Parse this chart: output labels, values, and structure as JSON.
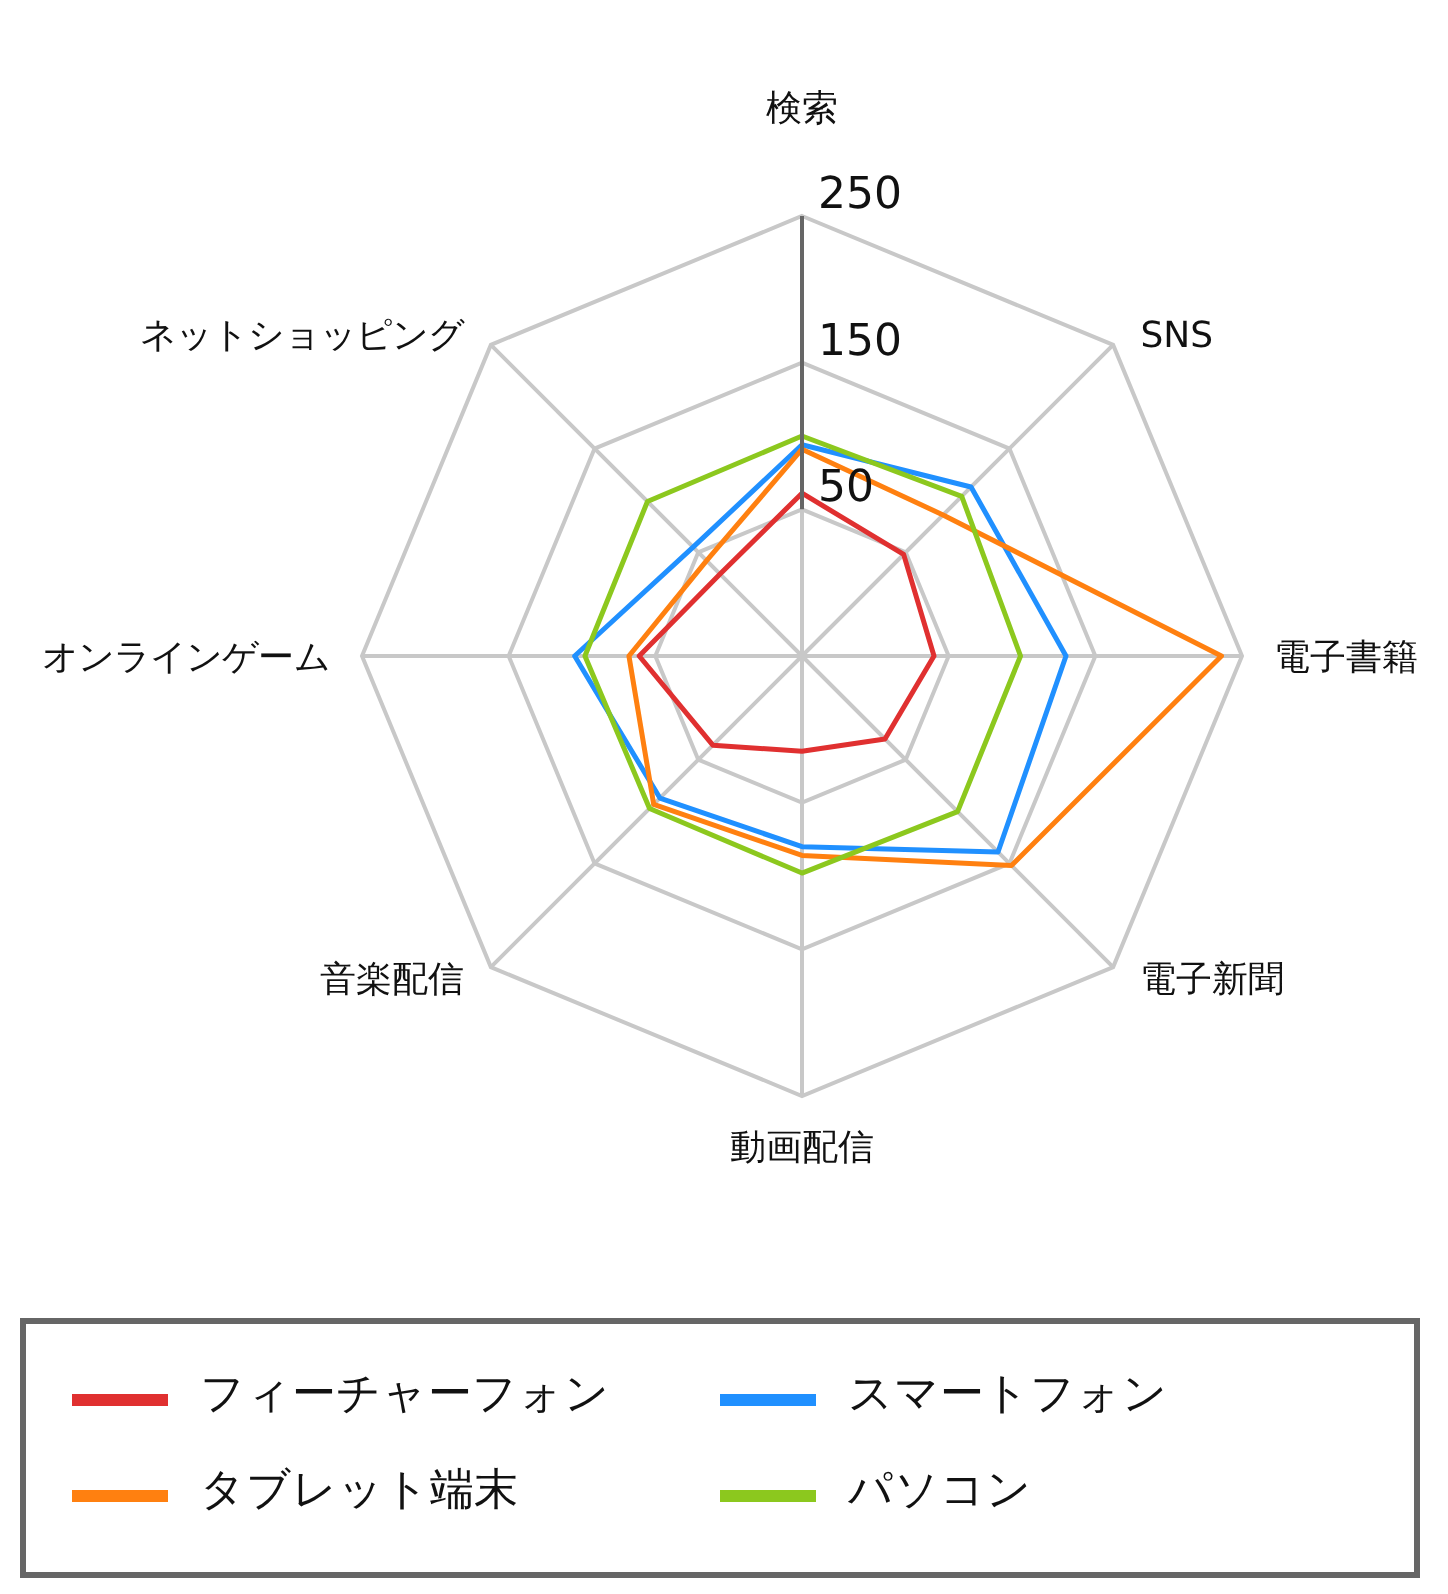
{
  "chart_data": {
    "type": "radar",
    "categories": [
      "検索",
      "SNS",
      "電子書籍",
      "電子新聞",
      "動画配信",
      "音楽配信",
      "オンラインゲーム",
      "ネットショッピング"
    ],
    "series": [
      {
        "name": "フィーチャーフォン",
        "color": "#e03030",
        "values": [
          61,
          48,
          40,
          30,
          15,
          36,
          61,
          29
        ]
      },
      {
        "name": "スマートフォン",
        "color": "#2090ff",
        "values": [
          94,
          113,
          130,
          139,
          80,
          87,
          105,
          55
        ]
      },
      {
        "name": "タブレット端末",
        "color": "#ff8010",
        "values": [
          91,
          86,
          236,
          152,
          86,
          93,
          68,
          42
        ]
      },
      {
        "name": "パソコン",
        "color": "#8cc81e",
        "values": [
          100,
          104,
          99,
          100,
          98,
          97,
          98,
          99
        ]
      }
    ],
    "ylim": [
      -50,
      250
    ],
    "yticks": [
      50,
      150,
      250
    ],
    "grid": true,
    "legend": "bottom"
  }
}
